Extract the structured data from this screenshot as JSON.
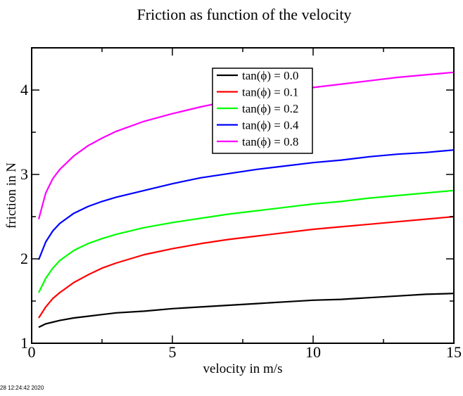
{
  "chart_data": {
    "type": "line",
    "title": "Friction as function of the velocity",
    "xlabel": "velocity in m/s",
    "ylabel": "friction in N",
    "xlim": [
      0,
      15
    ],
    "ylim": [
      1,
      4.5
    ],
    "x_major_ticks": [
      0,
      5,
      10,
      15
    ],
    "x_minor_ticks": [
      2.5,
      7.5,
      12.5
    ],
    "y_major_ticks": [
      1,
      2,
      3,
      4
    ],
    "y_minor_ticks": [
      1.5,
      2.5,
      3.5
    ],
    "x_tick_labels": [
      "0",
      "5",
      "10",
      "15"
    ],
    "y_tick_labels": [
      "1",
      "2",
      "3",
      "4"
    ],
    "grid": false,
    "legend_position": "top-center",
    "x": [
      0.25,
      0.5,
      0.75,
      1,
      1.5,
      2,
      2.5,
      3,
      4,
      5,
      6,
      7,
      8,
      9,
      10,
      11,
      12,
      13,
      14,
      15
    ],
    "series": [
      {
        "name": "tan(ϕ) = 0.0",
        "color": "#000000",
        "values": [
          1.19,
          1.23,
          1.25,
          1.27,
          1.3,
          1.32,
          1.34,
          1.36,
          1.38,
          1.41,
          1.43,
          1.45,
          1.47,
          1.49,
          1.51,
          1.52,
          1.54,
          1.56,
          1.58,
          1.59
        ]
      },
      {
        "name": "tan(ϕ) = 0.1",
        "color": "#ff0000",
        "values": [
          1.3,
          1.43,
          1.53,
          1.6,
          1.72,
          1.81,
          1.89,
          1.95,
          2.05,
          2.12,
          2.18,
          2.23,
          2.27,
          2.31,
          2.35,
          2.38,
          2.41,
          2.44,
          2.47,
          2.5
        ]
      },
      {
        "name": "tan(ϕ) = 0.2",
        "color": "#00ff00",
        "values": [
          1.6,
          1.77,
          1.89,
          1.98,
          2.1,
          2.18,
          2.24,
          2.29,
          2.37,
          2.43,
          2.48,
          2.53,
          2.57,
          2.61,
          2.65,
          2.68,
          2.72,
          2.75,
          2.78,
          2.81
        ]
      },
      {
        "name": "tan(ϕ) = 0.4",
        "color": "#0000ff",
        "values": [
          1.99,
          2.2,
          2.33,
          2.42,
          2.54,
          2.62,
          2.68,
          2.73,
          2.81,
          2.89,
          2.96,
          3.01,
          3.06,
          3.1,
          3.14,
          3.17,
          3.21,
          3.24,
          3.26,
          3.29
        ]
      },
      {
        "name": "tan(ϕ) = 0.8",
        "color": "#ff00ff",
        "values": [
          2.47,
          2.78,
          2.95,
          3.06,
          3.22,
          3.34,
          3.43,
          3.51,
          3.63,
          3.72,
          3.8,
          3.87,
          3.93,
          3.98,
          4.03,
          4.07,
          4.11,
          4.15,
          4.18,
          4.21
        ]
      }
    ]
  },
  "footer_text": "28 12:24:42 2020"
}
